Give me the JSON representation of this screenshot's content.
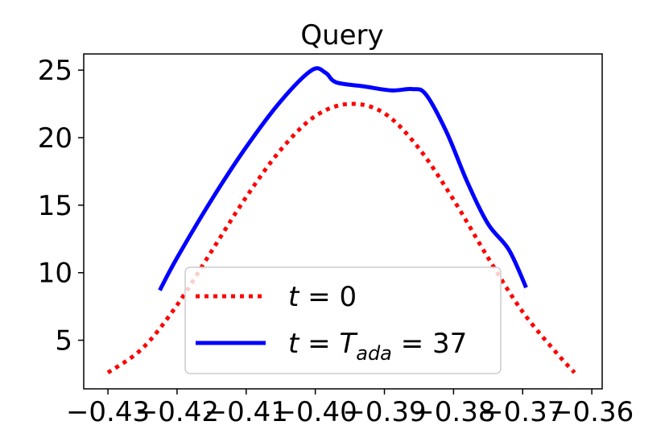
{
  "chart_data": {
    "type": "line",
    "title": "Query",
    "xlim": [
      -0.4335,
      -0.3585
    ],
    "ylim": [
      1.4,
      26.2
    ],
    "x_ticks": [
      -0.43,
      -0.42,
      -0.41,
      -0.4,
      -0.39,
      -0.38,
      -0.37,
      -0.36
    ],
    "x_tick_labels": [
      "−0.43",
      "−0.42",
      "−0.41",
      "−0.40",
      "−0.39",
      "−0.38",
      "−0.37",
      "−0.36"
    ],
    "y_ticks": [
      5,
      10,
      15,
      20,
      25
    ],
    "y_tick_labels": [
      "5",
      "10",
      "15",
      "20",
      "25"
    ],
    "grid": false,
    "legend_position": "lower-center",
    "series": [
      {
        "name": "t = 0",
        "style": "dotted",
        "color": "#ff0000",
        "x": [
          -0.43,
          -0.425,
          -0.42,
          -0.415,
          -0.41,
          -0.405,
          -0.4,
          -0.395,
          -0.39,
          -0.385,
          -0.38,
          -0.375,
          -0.37,
          -0.365,
          -0.3625
        ],
        "y": [
          2.6,
          4.4,
          7.6,
          11.6,
          15.6,
          19.1,
          21.6,
          22.5,
          21.8,
          19.2,
          15.4,
          11.1,
          7.1,
          4.0,
          2.6
        ]
      },
      {
        "name": "t = T_ada = 37",
        "style": "solid",
        "color": "#0000ff",
        "x": [
          -0.4225,
          -0.42,
          -0.415,
          -0.41,
          -0.405,
          -0.4005,
          -0.3985,
          -0.397,
          -0.393,
          -0.389,
          -0.386,
          -0.384,
          -0.381,
          -0.378,
          -0.375,
          -0.372,
          -0.3695
        ],
        "y": [
          8.7,
          11.1,
          15.4,
          19.3,
          22.7,
          25.0,
          24.8,
          24.1,
          23.8,
          23.5,
          23.6,
          23.2,
          20.4,
          16.7,
          13.6,
          11.7,
          8.9
        ]
      }
    ],
    "legend": [
      {
        "label_main": "t",
        "label_rest": " = 0",
        "sub": "",
        "tail": ""
      },
      {
        "label_main": "t",
        "label_rest": " = T",
        "sub": "ada",
        "tail": " = 37"
      }
    ]
  }
}
